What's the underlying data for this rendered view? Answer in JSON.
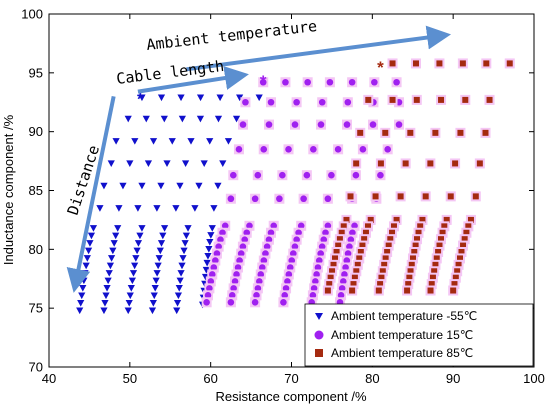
{
  "chart_data": {
    "type": "scatter",
    "xlabel": "Resistance component /%",
    "ylabel": "Inductance component /%",
    "xlim": [
      40,
      100
    ],
    "ylim": [
      70,
      100
    ],
    "xticks": [
      40,
      50,
      60,
      70,
      80,
      90,
      100
    ],
    "yticks": [
      70,
      75,
      80,
      85,
      90,
      95,
      100
    ],
    "grid": false,
    "legend_position": "bottom-right",
    "series": [
      {
        "name": "Ambient temperature -55℃",
        "marker": "triangle-down",
        "color": "#1010cc",
        "rows": [
          {
            "y": 92.9,
            "x0": 51.5,
            "x1": 66.0,
            "n": 7
          },
          {
            "y": 91.1,
            "x0": 49.8,
            "x1": 63.2,
            "n": 7
          },
          {
            "y": 89.2,
            "x0": 48.3,
            "x1": 62.2,
            "n": 7
          },
          {
            "y": 87.3,
            "x0": 47.7,
            "x1": 61.5,
            "n": 7
          },
          {
            "y": 85.4,
            "x0": 46.8,
            "x1": 60.9,
            "n": 7
          },
          {
            "y": 83.5,
            "x0": 46.3,
            "x1": 60.4,
            "n": 7
          }
        ],
        "columns": [
          {
            "x_top": 45.5,
            "y_top": 81.8,
            "x_bottom": 43.8,
            "y_bottom": 74.8
          },
          {
            "x_top": 48.5,
            "y_top": 81.8,
            "x_bottom": 46.8,
            "y_bottom": 74.8
          },
          {
            "x_top": 51.5,
            "y_top": 81.8,
            "x_bottom": 49.8,
            "y_bottom": 74.8
          },
          {
            "x_top": 54.3,
            "y_top": 81.8,
            "x_bottom": 52.8,
            "y_bottom": 74.8
          },
          {
            "x_top": 57.2,
            "y_top": 81.8,
            "x_bottom": 55.8,
            "y_bottom": 74.8
          },
          {
            "x_top": 60.2,
            "y_top": 81.8,
            "x_bottom": 59.0,
            "y_bottom": 75.3
          }
        ]
      },
      {
        "name": "Ambient temperature 15℃",
        "marker": "circle",
        "color": "#a020f0",
        "rows": [
          {
            "y": 94.2,
            "x0": 66.5,
            "x1": 83.0,
            "n": 7
          },
          {
            "y": 92.5,
            "x0": 64.3,
            "x1": 83.3,
            "n": 7
          },
          {
            "y": 90.6,
            "x0": 64.0,
            "x1": 83.3,
            "n": 7
          },
          {
            "y": 88.5,
            "x0": 63.5,
            "x1": 81.9,
            "n": 7
          },
          {
            "y": 86.3,
            "x0": 62.8,
            "x1": 81.0,
            "n": 7
          },
          {
            "y": 84.3,
            "x0": 62.5,
            "x1": 80.5,
            "n": 7
          }
        ],
        "columns": [
          {
            "x_top": 61.8,
            "y_top": 82.0,
            "x_bottom": 59.5,
            "y_bottom": 75.5
          },
          {
            "x_top": 64.8,
            "y_top": 82.0,
            "x_bottom": 62.5,
            "y_bottom": 75.5
          },
          {
            "x_top": 67.8,
            "y_top": 82.0,
            "x_bottom": 65.5,
            "y_bottom": 75.5
          },
          {
            "x_top": 71.2,
            "y_top": 82.0,
            "x_bottom": 69.0,
            "y_bottom": 75.5
          },
          {
            "x_top": 74.5,
            "y_top": 82.0,
            "x_bottom": 72.5,
            "y_bottom": 75.5
          },
          {
            "x_top": 77.8,
            "y_top": 82.0,
            "x_bottom": 76.0,
            "y_bottom": 75.5
          }
        ]
      },
      {
        "name": "Ambient temperature 85℃",
        "marker": "square",
        "color": "#a52a10",
        "rows": [
          {
            "y": 95.8,
            "x0": 82.5,
            "x1": 97.0,
            "n": 6
          },
          {
            "y": 92.7,
            "x0": 79.5,
            "x1": 94.5,
            "n": 6
          },
          {
            "y": 89.9,
            "x0": 78.5,
            "x1": 94.0,
            "n": 6
          },
          {
            "y": 87.3,
            "x0": 78.0,
            "x1": 93.3,
            "n": 6
          },
          {
            "y": 84.5,
            "x0": 77.3,
            "x1": 92.8,
            "n": 6
          }
        ],
        "columns": [
          {
            "x_top": 76.8,
            "y_top": 82.5,
            "x_bottom": 74.5,
            "y_bottom": 76.5
          },
          {
            "x_top": 79.8,
            "y_top": 82.5,
            "x_bottom": 77.5,
            "y_bottom": 76.5
          },
          {
            "x_top": 83.0,
            "y_top": 82.5,
            "x_bottom": 80.8,
            "y_bottom": 76.5
          },
          {
            "x_top": 86.2,
            "y_top": 82.5,
            "x_bottom": 84.3,
            "y_bottom": 76.5
          },
          {
            "x_top": 89.2,
            "y_top": 82.5,
            "x_bottom": 87.2,
            "y_bottom": 76.5
          },
          {
            "x_top": 92.2,
            "y_top": 82.5,
            "x_bottom": 90.0,
            "y_bottom": 76.5
          }
        ]
      }
    ],
    "starred_points": [
      {
        "x": 51.3,
        "y": 92.8,
        "color": "#1010cc"
      },
      {
        "x": 66.5,
        "y": 94.3,
        "color": "#a020f0"
      },
      {
        "x": 81.0,
        "y": 95.5,
        "color": "#a52a10"
      }
    ],
    "annotations": [
      {
        "text": "Ambient temperature",
        "from": [
          57.0,
          95.3
        ],
        "to": [
          89.0,
          98.2
        ]
      },
      {
        "text": "Cable length",
        "from": [
          51.0,
          93.4
        ],
        "to": [
          64.0,
          94.8
        ]
      },
      {
        "text": "Distance",
        "from": [
          48.0,
          93.0
        ],
        "to": [
          43.2,
          76.8
        ]
      }
    ]
  }
}
